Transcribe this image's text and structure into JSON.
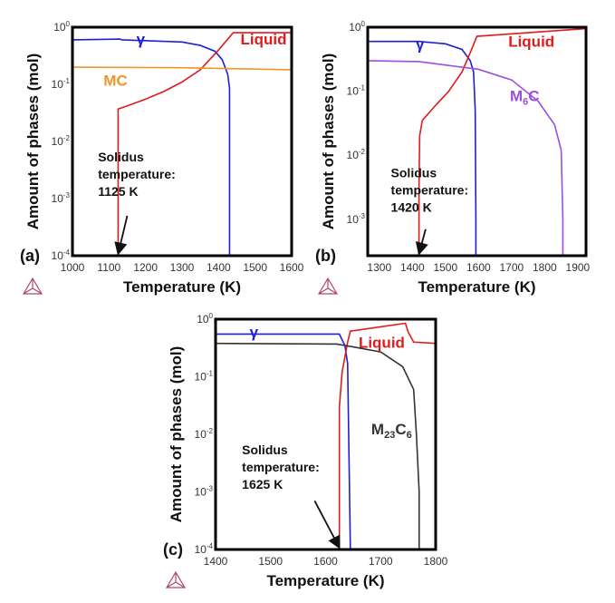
{
  "chart_data": [
    {
      "type": "line",
      "panel_label": "(a)",
      "xlabel": "Temperature (K)",
      "ylabel": "Amount of phases (mol)",
      "yscale": "log",
      "xlim": [
        1000,
        1600
      ],
      "ylim": [
        0.0001,
        1
      ],
      "x_ticks": [
        1000,
        1100,
        1200,
        1300,
        1400,
        1500,
        1600
      ],
      "y_ticks": [
        {
          "exp": "0",
          "v": 1
        },
        {
          "exp": "-1",
          "v": 0.1
        },
        {
          "exp": "-2",
          "v": 0.01
        },
        {
          "exp": "-3",
          "v": 0.001
        },
        {
          "exp": "-4",
          "v": 0.0001
        }
      ],
      "series": [
        {
          "name": "γ",
          "color": "#1f1fd6",
          "label_at": [
            1175,
            0.5
          ],
          "points": [
            [
              1000,
              0.6
            ],
            [
              1130,
              0.62
            ],
            [
              1135,
              0.6
            ],
            [
              1300,
              0.55
            ],
            [
              1350,
              0.48
            ],
            [
              1390,
              0.38
            ],
            [
              1410,
              0.27
            ],
            [
              1425,
              0.15
            ],
            [
              1430,
              0.085
            ],
            [
              1430,
              0.0001
            ]
          ]
        },
        {
          "name": "Liquid",
          "color": "#e01b1b",
          "label_at": [
            1460,
            0.5
          ],
          "points": [
            [
              1125,
              0.0001
            ],
            [
              1125,
              0.037
            ],
            [
              1150,
              0.042
            ],
            [
              1200,
              0.055
            ],
            [
              1250,
              0.075
            ],
            [
              1300,
              0.11
            ],
            [
              1350,
              0.18
            ],
            [
              1400,
              0.4
            ],
            [
              1440,
              0.8
            ],
            [
              1600,
              0.8
            ]
          ]
        },
        {
          "name": "MC",
          "color": "#f0962a",
          "label_at": [
            1085,
            0.095
          ],
          "points": [
            [
              1000,
              0.2
            ],
            [
              1300,
              0.195
            ],
            [
              1600,
              0.18
            ]
          ]
        }
      ],
      "annotation": {
        "lines": [
          "Solidus",
          "temperature:",
          "1125 K"
        ],
        "text_at": [
          1070,
          0.0045
        ],
        "arrow_from": [
          1150,
          0.0005
        ],
        "arrow_to": [
          1125,
          0.0001
        ],
        "solidus_K": 1125
      }
    },
    {
      "type": "line",
      "panel_label": "(b)",
      "xlabel": "Temperature (K)",
      "ylabel": "Amount of phases (mol)",
      "yscale": "log",
      "xlim": [
        1265,
        1925
      ],
      "ylim": [
        0.00027,
        1
      ],
      "x_ticks": [
        1300,
        1400,
        1500,
        1600,
        1700,
        1800,
        1900
      ],
      "y_ticks": [
        {
          "exp": "0",
          "v": 1
        },
        {
          "exp": "-1",
          "v": 0.1
        },
        {
          "exp": "-2",
          "v": 0.01
        },
        {
          "exp": "-3",
          "v": 0.001
        }
      ],
      "series": [
        {
          "name": "γ",
          "color": "#1f1fd6",
          "label_at": [
            1410,
            0.45
          ],
          "points": [
            [
              1265,
              0.6
            ],
            [
              1420,
              0.6
            ],
            [
              1500,
              0.55
            ],
            [
              1550,
              0.45
            ],
            [
              1575,
              0.3
            ],
            [
              1585,
              0.2
            ],
            [
              1590,
              0.05
            ],
            [
              1592,
              0.001
            ],
            [
              1592,
              0.00027
            ]
          ]
        },
        {
          "name": "Liquid",
          "color": "#e01b1b",
          "label_at": [
            1690,
            0.5
          ],
          "points": [
            [
              1420,
              0.00027
            ],
            [
              1420,
              0.003
            ],
            [
              1422,
              0.02
            ],
            [
              1430,
              0.035
            ],
            [
              1470,
              0.06
            ],
            [
              1510,
              0.1
            ],
            [
              1550,
              0.2
            ],
            [
              1575,
              0.4
            ],
            [
              1595,
              0.72
            ],
            [
              1925,
              0.95
            ]
          ]
        },
        {
          "name": "M",
          "sub": "6",
          "tail": "C",
          "color": "#9a4fe0",
          "label_at": [
            1695,
            0.07
          ],
          "points": [
            [
              1265,
              0.3
            ],
            [
              1420,
              0.29
            ],
            [
              1600,
              0.22
            ],
            [
              1700,
              0.15
            ],
            [
              1780,
              0.07
            ],
            [
              1830,
              0.03
            ],
            [
              1850,
              0.012
            ],
            [
              1855,
              0.001
            ],
            [
              1855,
              0.00027
            ]
          ]
        }
      ],
      "annotation": {
        "lines": [
          "Solidus",
          "temperature:",
          "1420 K"
        ],
        "text_at": [
          1335,
          0.0045
        ],
        "arrow_from": [
          1440,
          0.0007
        ],
        "arrow_to": [
          1420,
          0.00027
        ],
        "solidus_K": 1420
      }
    },
    {
      "type": "line",
      "panel_label": "(c)",
      "xlabel": "Temperature (K)",
      "ylabel": "Amount of phases (mol)",
      "yscale": "log",
      "xlim": [
        1400,
        1800
      ],
      "ylim": [
        0.0001,
        1
      ],
      "x_ticks": [
        1400,
        1500,
        1600,
        1700,
        1800
      ],
      "y_ticks": [
        {
          "exp": "0",
          "v": 1
        },
        {
          "exp": "-1",
          "v": 0.1
        },
        {
          "exp": "-2",
          "v": 0.01
        },
        {
          "exp": "-3",
          "v": 0.001
        },
        {
          "exp": "-4",
          "v": 0.0001
        }
      ],
      "series": [
        {
          "name": "γ",
          "color": "#1f1fd6",
          "label_at": [
            1462,
            0.48
          ],
          "points": [
            [
              1400,
              0.55
            ],
            [
              1625,
              0.55
            ],
            [
              1635,
              0.35
            ],
            [
              1640,
              0.17
            ],
            [
              1645,
              0.0001
            ]
          ]
        },
        {
          "name": "Liquid",
          "color": "#e01b1b",
          "label_at": [
            1660,
            0.32
          ],
          "points": [
            [
              1625,
              0.0001
            ],
            [
              1625,
              0.03
            ],
            [
              1630,
              0.12
            ],
            [
              1640,
              0.4
            ],
            [
              1645,
              0.62
            ],
            [
              1745,
              0.85
            ],
            [
              1750,
              0.6
            ],
            [
              1760,
              0.4
            ],
            [
              1800,
              0.38
            ]
          ]
        },
        {
          "name": "M",
          "sub": "23",
          "tail": "C",
          "sub2": "6",
          "color": "#333333",
          "label_at": [
            1683,
            0.01
          ],
          "points": [
            [
              1400,
              0.38
            ],
            [
              1620,
              0.37
            ],
            [
              1650,
              0.33
            ],
            [
              1700,
              0.27
            ],
            [
              1740,
              0.15
            ],
            [
              1760,
              0.06
            ],
            [
              1765,
              0.01
            ],
            [
              1770,
              0.001
            ],
            [
              1770,
              0.0001
            ]
          ]
        }
      ],
      "annotation": {
        "lines": [
          "Solidus",
          "temperature:",
          "1625 K"
        ],
        "text_at": [
          1448,
          0.0045
        ],
        "arrow_from": [
          1580,
          0.0007
        ],
        "arrow_to": [
          1625,
          0.0001
        ],
        "solidus_K": 1625
      }
    }
  ]
}
